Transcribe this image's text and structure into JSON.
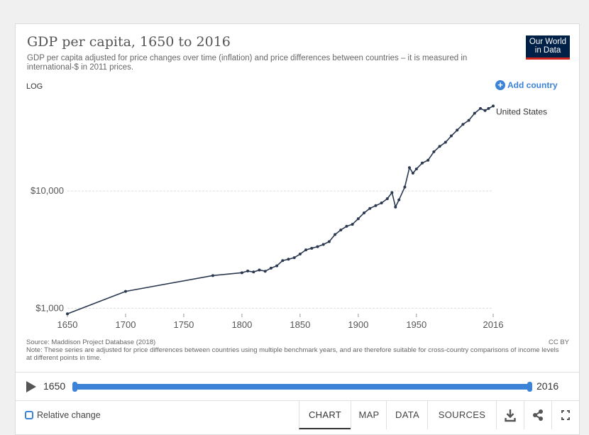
{
  "header": {
    "title": "GDP per capita, 1650 to 2016",
    "subtitle": "GDP per capita adjusted for price changes over time (inflation) and price differences between countries – it is measured in international-$ in 2011 prices.",
    "logo_line1": "Our World",
    "logo_line2": "in Data"
  },
  "controls": {
    "log_label": "LOG",
    "add_country_label": "Add country"
  },
  "colors": {
    "series": "#2b3950",
    "accent": "#3c82d7",
    "logo_bg": "#002147",
    "logo_bar": "#ce261e"
  },
  "chart_data": {
    "type": "line",
    "title": "GDP per capita, 1650 to 2016",
    "scale": "log",
    "xlim": [
      1650,
      2016
    ],
    "ylim": [
      900,
      63000
    ],
    "x_ticks": [
      1650,
      1700,
      1750,
      1800,
      1850,
      1900,
      1950,
      2016
    ],
    "y_ticks": [
      1000,
      10000
    ],
    "y_tick_labels": [
      "$1,000",
      "$10,000"
    ],
    "grid": true,
    "series": [
      {
        "name": "United States",
        "points": [
          [
            1650,
            897
          ],
          [
            1700,
            1393
          ],
          [
            1775,
            1901
          ],
          [
            1800,
            2010
          ],
          [
            1805,
            2080
          ],
          [
            1810,
            2040
          ],
          [
            1815,
            2120
          ],
          [
            1820,
            2070
          ],
          [
            1825,
            2200
          ],
          [
            1830,
            2300
          ],
          [
            1835,
            2550
          ],
          [
            1840,
            2620
          ],
          [
            1845,
            2700
          ],
          [
            1850,
            2900
          ],
          [
            1855,
            3150
          ],
          [
            1860,
            3250
          ],
          [
            1865,
            3350
          ],
          [
            1870,
            3500
          ],
          [
            1875,
            3700
          ],
          [
            1880,
            4250
          ],
          [
            1885,
            4650
          ],
          [
            1890,
            5000
          ],
          [
            1895,
            5200
          ],
          [
            1900,
            5800
          ],
          [
            1905,
            6500
          ],
          [
            1910,
            7100
          ],
          [
            1915,
            7500
          ],
          [
            1920,
            7900
          ],
          [
            1925,
            8600
          ],
          [
            1929,
            9700
          ],
          [
            1932,
            7300
          ],
          [
            1935,
            8400
          ],
          [
            1940,
            10800
          ],
          [
            1944,
            15800
          ],
          [
            1947,
            14200
          ],
          [
            1950,
            15400
          ],
          [
            1955,
            17300
          ],
          [
            1960,
            18300
          ],
          [
            1965,
            21600
          ],
          [
            1970,
            24000
          ],
          [
            1975,
            26000
          ],
          [
            1980,
            29500
          ],
          [
            1985,
            33000
          ],
          [
            1990,
            37000
          ],
          [
            1995,
            40000
          ],
          [
            2000,
            46000
          ],
          [
            2005,
            50500
          ],
          [
            2009,
            48500
          ],
          [
            2012,
            50500
          ],
          [
            2016,
            53000
          ]
        ]
      }
    ],
    "series_label": "United States"
  },
  "footer": {
    "source": "Source: Maddison Project Database (2018)",
    "note": "Note: These series are adjusted for price differences between countries using multiple benchmark years, and are therefore suitable for cross-country comparisons of income levels at different points in time.",
    "license": "CC BY"
  },
  "timeline": {
    "start_year": "1650",
    "end_year": "2016"
  },
  "bottom_bar": {
    "relative_change_label": "Relative change",
    "tabs": [
      "CHART",
      "MAP",
      "DATA",
      "SOURCES"
    ],
    "active_tab": "CHART"
  }
}
